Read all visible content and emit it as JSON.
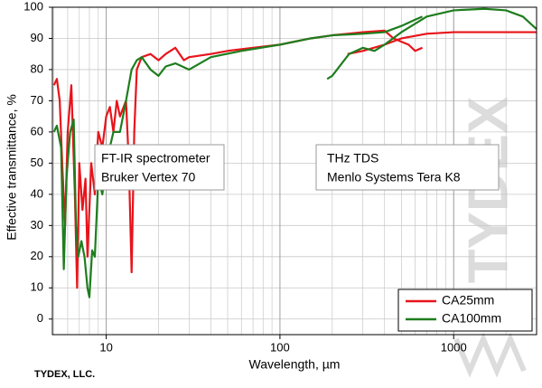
{
  "chart_data": {
    "type": "line",
    "x_label": "Wavelength, µm",
    "y_label": "Effective transmittance, %",
    "footer": "TYDEX, LLC.",
    "watermark": "TYDEX",
    "annotations": [
      [
        "FT-IR spectrometer",
        "Bruker Vertex 70"
      ],
      [
        "THz TDS",
        "Menlo Systems Tera K8"
      ]
    ],
    "xscale": "log",
    "xlim": [
      4.9,
      3000
    ],
    "ylim": [
      -5,
      100
    ],
    "xticks": [
      10,
      100,
      1000
    ],
    "yticks": [
      0,
      10,
      20,
      30,
      40,
      50,
      60,
      70,
      80,
      90,
      100
    ],
    "grid": true,
    "legend": "lower right",
    "series": [
      {
        "name": "CA25mm",
        "color": "#e8141b",
        "x": [
          5.0,
          5.2,
          5.4,
          5.6,
          5.8,
          6.0,
          6.3,
          6.6,
          6.8,
          7.0,
          7.3,
          7.6,
          7.8,
          8.2,
          8.6,
          9.0,
          9.5,
          10,
          10.5,
          11,
          11.5,
          12,
          13,
          13.5,
          14,
          14.5,
          15,
          16,
          18,
          20,
          22,
          25,
          28,
          30,
          40,
          50,
          70,
          100,
          150,
          200,
          300,
          400,
          450,
          550,
          600,
          660,
          null,
          245,
          300,
          400,
          500,
          700,
          1000,
          1500,
          2000,
          3000
        ],
        "values": [
          75,
          77,
          70,
          48,
          30,
          60,
          75,
          40,
          10,
          50,
          35,
          45,
          20,
          50,
          40,
          60,
          55,
          65,
          68,
          60,
          70,
          65,
          70,
          50,
          15,
          60,
          80,
          84,
          85,
          83,
          85,
          87,
          83,
          84,
          85,
          86,
          87,
          88,
          90,
          91,
          92,
          92.5,
          90,
          88,
          86,
          87,
          null,
          85,
          86,
          88,
          90,
          91.5,
          92,
          92,
          92,
          92
        ]
      },
      {
        "name": "CA100mm",
        "color": "#1e7d1e",
        "x": [
          5.0,
          5.2,
          5.5,
          5.7,
          5.9,
          6.2,
          6.5,
          6.7,
          6.9,
          7.2,
          7.5,
          7.8,
          8.0,
          8.3,
          8.6,
          9.0,
          9.5,
          10,
          11,
          12,
          13,
          14,
          15,
          16,
          18,
          20,
          22,
          25,
          30,
          40,
          60,
          100,
          150,
          200,
          300,
          400,
          500,
          600,
          660,
          null,
          187,
          200,
          250,
          300,
          350,
          400,
          500,
          700,
          1000,
          1500,
          2000,
          2500,
          3000
        ],
        "values": [
          60,
          62,
          55,
          16,
          45,
          60,
          64,
          30,
          20,
          25,
          20,
          10,
          7,
          22,
          20,
          45,
          40,
          50,
          60,
          60,
          70,
          80,
          83,
          84,
          80,
          78,
          81,
          82,
          80,
          84,
          86,
          88,
          90,
          91,
          91.5,
          92,
          94,
          96,
          97,
          null,
          77,
          78,
          85,
          87,
          86,
          88,
          92,
          97,
          99,
          99.5,
          99,
          97,
          93
        ]
      }
    ]
  }
}
